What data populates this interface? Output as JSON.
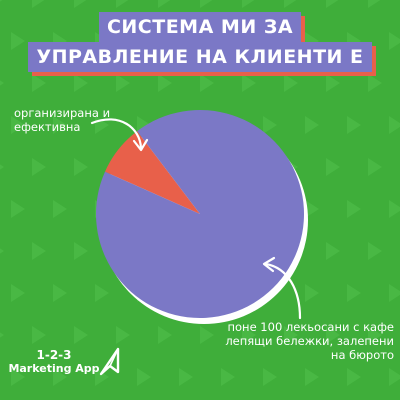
{
  "title": {
    "line1": "СИСТЕМА МИ ЗА",
    "line2": "УПРАВЛЕНИЕ НА КЛИЕНТИ Е"
  },
  "colors": {
    "background": "#3fae3a",
    "background_pattern": "#49b844",
    "accent": "#e8604a",
    "primary": "#7b78c6",
    "text": "#ffffff",
    "pie_shadow": "#ffffff"
  },
  "chart_data": {
    "type": "pie",
    "title": "",
    "slices": [
      {
        "label": "организирана и ефективна",
        "value": 8,
        "color": "#e8604a"
      },
      {
        "label": "поне 100 лекьосани с кафе лепящи бележки, залепени на бюрото",
        "value": 92,
        "color": "#7b78c6"
      }
    ],
    "start_angle_deg": -156
  },
  "annotations": {
    "left": "организирана и ефективна",
    "right": "поне 100 лекьосани с кафе лепящи бележки, залепени на бюрото"
  },
  "brand": {
    "line1": "1-2-3",
    "line2": "Marketing App",
    "icon": "send-arrow-icon"
  }
}
